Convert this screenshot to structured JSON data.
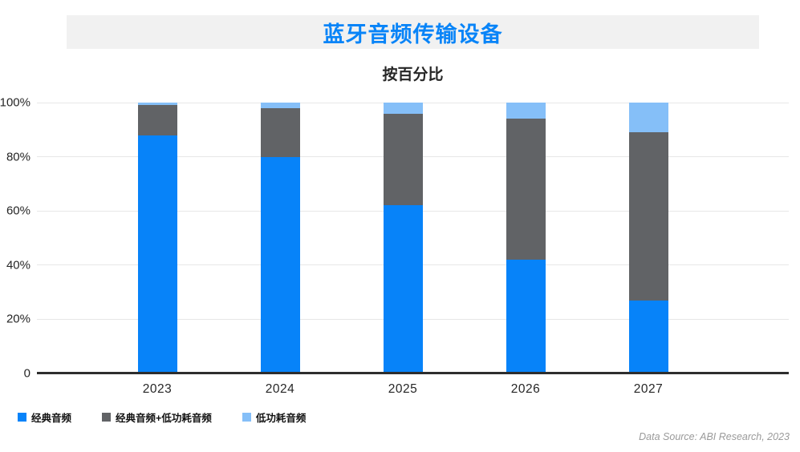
{
  "header": {
    "title": "蓝牙音频传输设备",
    "subtitle": "按百分比"
  },
  "chart_data": {
    "type": "bar",
    "stacked": true,
    "title": "蓝牙音频传输设备",
    "subtitle": "按百分比",
    "categories": [
      "2023",
      "2024",
      "2025",
      "2026",
      "2027"
    ],
    "series": [
      {
        "key": "classic",
        "name": "经典音频",
        "color": "#0783F9",
        "values": [
          88,
          80,
          62,
          42,
          27
        ]
      },
      {
        "key": "classic-plus-le",
        "name": "经典音频+低功耗音频",
        "color": "#616366",
        "values": [
          11,
          18,
          34,
          52,
          62
        ]
      },
      {
        "key": "le",
        "name": "低功耗音频",
        "color": "#85BFF8",
        "values": [
          1,
          2,
          4,
          6,
          11
        ]
      }
    ],
    "xlabel": "",
    "ylabel": "",
    "y_ticks": [
      "100%",
      "80%",
      "60%",
      "40%",
      "20%",
      "0"
    ],
    "ylim": [
      0,
      100
    ],
    "grid": true,
    "legend_position": "bottom-left"
  },
  "footer": {
    "source": "Data Source: ABI Research, 2023"
  },
  "colors": {
    "title": "#0884F8",
    "title_band": "#f1f1f1",
    "gridline": "#e7e7e7",
    "axis": "#2e2e2e",
    "text": "#262626",
    "source": "#9a9a9a"
  }
}
